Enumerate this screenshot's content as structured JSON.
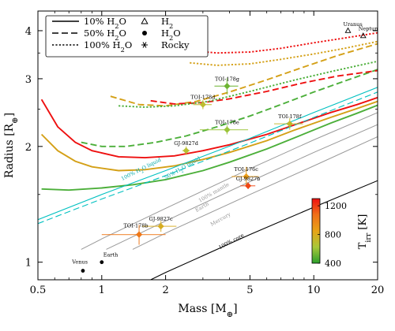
{
  "chart_data": {
    "type": "line",
    "x_scale": "log",
    "y_scale": "log",
    "xlim": [
      0.5,
      20
    ],
    "ylim": [
      0.9,
      4.5
    ],
    "xlabel_text": "Mass [M",
    "xlabel_sub": "⊕",
    "xlabel_end": "]",
    "ylabel_text": "Radius [R",
    "ylabel_sub": "⊕",
    "ylabel_end": "]",
    "x_ticks": [
      {
        "v": 0.5,
        "label": "0.5"
      },
      {
        "v": 1,
        "label": "1"
      },
      {
        "v": 2,
        "label": "2"
      },
      {
        "v": 5,
        "label": "5"
      },
      {
        "v": 10,
        "label": "10"
      },
      {
        "v": 20,
        "label": "20"
      }
    ],
    "y_ticks": [
      {
        "v": 1,
        "label": "1"
      },
      {
        "v": 2,
        "label": "2"
      },
      {
        "v": 3,
        "label": "3"
      },
      {
        "v": 4,
        "label": "4"
      }
    ],
    "legend": {
      "placement": "top-left",
      "lines": [
        {
          "label": "10% H",
          "sub": "2",
          "tail": "O",
          "dash": "solid"
        },
        {
          "label": "50% H",
          "sub": "2",
          "tail": "O",
          "dash": "dashed"
        },
        {
          "label": "100% H",
          "sub": "2",
          "tail": "O",
          "dash": "dotted"
        }
      ],
      "markers": [
        {
          "label": "H",
          "sub": "2",
          "marker": "triangle"
        },
        {
          "label": "H",
          "sub": "2",
          "tail": "O",
          "marker": "circle"
        },
        {
          "label": "Rocky",
          "marker": "asterisk"
        }
      ]
    },
    "colorbar": {
      "label": "T",
      "label_sub": "irr",
      "label_tail": " [K]",
      "ticks": [
        {
          "v": 1200,
          "label": "1200"
        },
        {
          "v": 800,
          "label": "800"
        },
        {
          "v": 400,
          "label": "400"
        }
      ],
      "range": [
        400,
        1300
      ],
      "colors": [
        "#2ca02c",
        "#a8c83a",
        "#e8a317",
        "#f07018",
        "#ee1010"
      ]
    },
    "model_curves": [
      {
        "color": "#ee1010",
        "dash": "solid",
        "points": [
          [
            0.52,
            2.65
          ],
          [
            0.62,
            2.25
          ],
          [
            0.75,
            2.05
          ],
          [
            0.9,
            1.95
          ],
          [
            1.2,
            1.88
          ],
          [
            1.6,
            1.87
          ],
          [
            2.2,
            1.89
          ],
          [
            3,
            1.95
          ],
          [
            4,
            2.02
          ],
          [
            6,
            2.15
          ],
          [
            8,
            2.27
          ],
          [
            12,
            2.45
          ],
          [
            16,
            2.57
          ],
          [
            20,
            2.68
          ]
        ]
      },
      {
        "color": "#d4a017",
        "dash": "solid",
        "points": [
          [
            0.52,
            2.15
          ],
          [
            0.62,
            1.95
          ],
          [
            0.75,
            1.83
          ],
          [
            0.9,
            1.77
          ],
          [
            1.2,
            1.73
          ],
          [
            1.6,
            1.74
          ],
          [
            2.2,
            1.78
          ],
          [
            3,
            1.85
          ],
          [
            4,
            1.93
          ],
          [
            6,
            2.07
          ],
          [
            8,
            2.2
          ],
          [
            12,
            2.38
          ],
          [
            16,
            2.51
          ],
          [
            20,
            2.62
          ]
        ]
      },
      {
        "color": "#4caf3a",
        "dash": "solid",
        "points": [
          [
            0.52,
            1.55
          ],
          [
            0.7,
            1.54
          ],
          [
            1,
            1.56
          ],
          [
            1.4,
            1.59
          ],
          [
            2,
            1.64
          ],
          [
            3,
            1.73
          ],
          [
            4,
            1.82
          ],
          [
            6,
            1.97
          ],
          [
            8,
            2.1
          ],
          [
            12,
            2.3
          ],
          [
            16,
            2.44
          ],
          [
            20,
            2.56
          ]
        ]
      },
      {
        "color": "#4caf3a",
        "dash": "dashed",
        "points": [
          [
            0.8,
            2.05
          ],
          [
            1,
            2.0
          ],
          [
            1.3,
            2.0
          ],
          [
            1.8,
            2.05
          ],
          [
            2.5,
            2.13
          ],
          [
            3.5,
            2.25
          ],
          [
            5,
            2.4
          ],
          [
            7,
            2.57
          ],
          [
            10,
            2.77
          ],
          [
            14,
            2.96
          ],
          [
            20,
            3.17
          ]
        ]
      },
      {
        "color": "#d4a017",
        "dash": "dashed",
        "points": [
          [
            1.1,
            2.7
          ],
          [
            1.5,
            2.57
          ],
          [
            2,
            2.55
          ],
          [
            2.8,
            2.62
          ],
          [
            4,
            2.77
          ],
          [
            6,
            2.98
          ],
          [
            9,
            3.22
          ],
          [
            13,
            3.45
          ],
          [
            20,
            3.7
          ]
        ]
      },
      {
        "color": "#ee1010",
        "dash": "dashed",
        "points": [
          [
            1.7,
            2.63
          ],
          [
            2.2,
            2.58
          ],
          [
            3,
            2.6
          ],
          [
            4,
            2.66
          ],
          [
            6,
            2.78
          ],
          [
            9,
            2.93
          ],
          [
            13,
            3.05
          ],
          [
            20,
            3.15
          ]
        ]
      },
      {
        "color": "#4caf3a",
        "dash": "dotted",
        "points": [
          [
            1.2,
            2.55
          ],
          [
            1.6,
            2.53
          ],
          [
            2.2,
            2.55
          ],
          [
            3.2,
            2.62
          ],
          [
            5,
            2.78
          ],
          [
            8,
            2.97
          ],
          [
            12,
            3.13
          ],
          [
            20,
            3.33
          ]
        ]
      },
      {
        "color": "#d4a017",
        "dash": "dotted",
        "points": [
          [
            2.6,
            3.3
          ],
          [
            3.5,
            3.25
          ],
          [
            5,
            3.28
          ],
          [
            7,
            3.37
          ],
          [
            10,
            3.48
          ],
          [
            14,
            3.6
          ],
          [
            20,
            3.75
          ]
        ]
      },
      {
        "color": "#ee1010",
        "dash": "dotted",
        "points": [
          [
            2.6,
            3.55
          ],
          [
            3.5,
            3.5
          ],
          [
            5,
            3.52
          ],
          [
            7,
            3.6
          ],
          [
            10,
            3.72
          ],
          [
            14,
            3.83
          ],
          [
            20,
            3.95
          ]
        ]
      },
      {
        "color": "#00c0c0",
        "dash": "solid",
        "points": [
          [
            0.5,
            1.29
          ],
          [
            1,
            1.5
          ],
          [
            2,
            1.73
          ],
          [
            5,
            2.1
          ],
          [
            10,
            2.45
          ],
          [
            20,
            2.85
          ]
        ]
      },
      {
        "color": "#00c0c0",
        "dash": "dashed",
        "points": [
          [
            0.5,
            1.26
          ],
          [
            1,
            1.46
          ],
          [
            2,
            1.68
          ],
          [
            5,
            2.04
          ],
          [
            10,
            2.38
          ],
          [
            20,
            2.77
          ]
        ]
      },
      {
        "color": "#999999",
        "dash": "solid",
        "points": [
          [
            0.8,
            1.08
          ],
          [
            1,
            1.15
          ],
          [
            2,
            1.38
          ],
          [
            5,
            1.75
          ],
          [
            10,
            2.08
          ],
          [
            20,
            2.45
          ]
        ]
      },
      {
        "color": "#999999",
        "dash": "solid",
        "points": [
          [
            1.05,
            1.08
          ],
          [
            2,
            1.28
          ],
          [
            5,
            1.62
          ],
          [
            10,
            1.93
          ],
          [
            20,
            2.28
          ]
        ]
      },
      {
        "color": "#999999",
        "dash": "solid",
        "points": [
          [
            1.4,
            1.08
          ],
          [
            2,
            1.19
          ],
          [
            5,
            1.5
          ],
          [
            10,
            1.78
          ],
          [
            20,
            2.12
          ]
        ]
      },
      {
        "color": "#000000",
        "dash": "solid",
        "points": [
          [
            1.7,
            0.9
          ],
          [
            2,
            0.94
          ],
          [
            5,
            1.18
          ],
          [
            10,
            1.39
          ],
          [
            20,
            1.63
          ]
        ]
      }
    ],
    "line_labels": [
      {
        "text": "100% H",
        "sub": "2",
        "tail": "O liquid",
        "color": "#00a8a8",
        "x": 1.25,
        "y": 1.63,
        "rot": -27
      },
      {
        "text": "50% H",
        "sub": "2",
        "tail": "O liquid",
        "color": "#00a8a8",
        "x": 2.0,
        "y": 1.64,
        "rot": -30
      },
      {
        "text": "100% mantle",
        "color": "#999999",
        "x": 2.9,
        "y": 1.43,
        "rot": -30
      },
      {
        "text": "Earth",
        "color": "#999999",
        "x": 2.8,
        "y": 1.35,
        "rot": -30
      },
      {
        "text": "Mercury",
        "color": "#999999",
        "x": 3.3,
        "y": 1.24,
        "rot": -30
      },
      {
        "text": "100% core",
        "color": "#000000",
        "x": 3.6,
        "y": 1.08,
        "rot": -28
      }
    ],
    "solar_system": [
      {
        "name": "Venus",
        "x": 0.815,
        "y": 0.95,
        "marker": "circle"
      },
      {
        "name": "Earth",
        "x": 1.0,
        "y": 1.0,
        "marker": "circle"
      },
      {
        "name": "Uranus",
        "x": 14.5,
        "y": 4.0,
        "marker": "triangle"
      },
      {
        "name": "Neptune",
        "x": 17.1,
        "y": 3.88,
        "marker": "triangle"
      }
    ],
    "planets": [
      {
        "name": "TOI-178g",
        "x": 3.9,
        "y": 2.87,
        "xerr": [
          0.5,
          0.5
        ],
        "yerr": [
          0.14,
          0.14
        ],
        "temp": 520
      },
      {
        "name": "TOI-178d",
        "x": 3.0,
        "y": 2.57,
        "xerr": [
          0.3,
          0.3
        ],
        "yerr": [
          0.07,
          0.07
        ],
        "temp": 700
      },
      {
        "name": "TOI-178e",
        "x": 3.9,
        "y": 2.21,
        "xerr": [
          1.0,
          1.0
        ],
        "yerr": [
          0.06,
          0.06
        ],
        "temp": 600
      },
      {
        "name": "TOI-178f",
        "x": 7.7,
        "y": 2.29,
        "xerr": [
          1.2,
          1.2
        ],
        "yerr": [
          0.08,
          0.08
        ],
        "temp": 720
      },
      {
        "name": "GJ-9827d",
        "x": 2.5,
        "y": 1.95,
        "xerr": [
          0.1,
          0.1
        ],
        "yerr": [
          0.05,
          0.05
        ],
        "temp": 680
      },
      {
        "name": "TOI-176c",
        "x": 4.8,
        "y": 1.67,
        "xerr": [
          0.7,
          0.7
        ],
        "yerr": [
          0.1,
          0.1
        ],
        "temp": 880
      },
      {
        "name": "GJ-9827b",
        "x": 4.9,
        "y": 1.58,
        "xerr": [
          0.4,
          0.4
        ],
        "yerr": [
          0.03,
          0.03
        ],
        "temp": 1170
      },
      {
        "name": "GJ-9827c",
        "x": 1.9,
        "y": 1.24,
        "xerr": [
          0.35,
          0.35
        ],
        "yerr": [
          0.04,
          0.04
        ],
        "temp": 790
      },
      {
        "name": "TOI-178b",
        "x": 1.5,
        "y": 1.18,
        "xerr": [
          0.5,
          0.5
        ],
        "yerr": [
          0.07,
          0.07
        ],
        "temp": 1040
      }
    ]
  }
}
